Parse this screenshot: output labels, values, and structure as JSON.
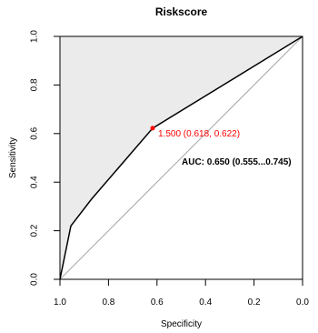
{
  "chart_data": {
    "type": "line",
    "title": "Riskscore",
    "xlabel": "Specificity",
    "ylabel": "Sensitivity",
    "xlim": [
      1.0,
      0.0
    ],
    "ylim": [
      0.0,
      1.0
    ],
    "x_ticks": [
      "1.0",
      "0.8",
      "0.6",
      "0.4",
      "0.2",
      "0.0"
    ],
    "x_tick_values": [
      1.0,
      0.8,
      0.6,
      0.4,
      0.2,
      0.0
    ],
    "y_ticks": [
      "0.0",
      "0.2",
      "0.4",
      "0.6",
      "0.8",
      "1.0"
    ],
    "y_tick_values": [
      0.0,
      0.2,
      0.4,
      0.6,
      0.8,
      1.0
    ],
    "series": [
      {
        "x": [
          1.0,
          0.955,
          0.87,
          0.618,
          0.0
        ],
        "y": [
          0.0,
          0.22,
          0.33,
          0.622,
          1.0
        ]
      }
    ],
    "reference_line": {
      "x": [
        1.0,
        0.0
      ],
      "y": [
        0.0,
        1.0
      ]
    },
    "highlight_point": {
      "x": 0.618,
      "y": 0.622,
      "label": "1.500 (0.618, 0.622)"
    },
    "auc_label": "AUC: 0.650 (0.555...0.745)",
    "grid": false,
    "colors": {
      "curve": "#000000",
      "fill": "#ebebeb",
      "reference": "#a6a6a6",
      "highlight": "#ff0000"
    }
  }
}
